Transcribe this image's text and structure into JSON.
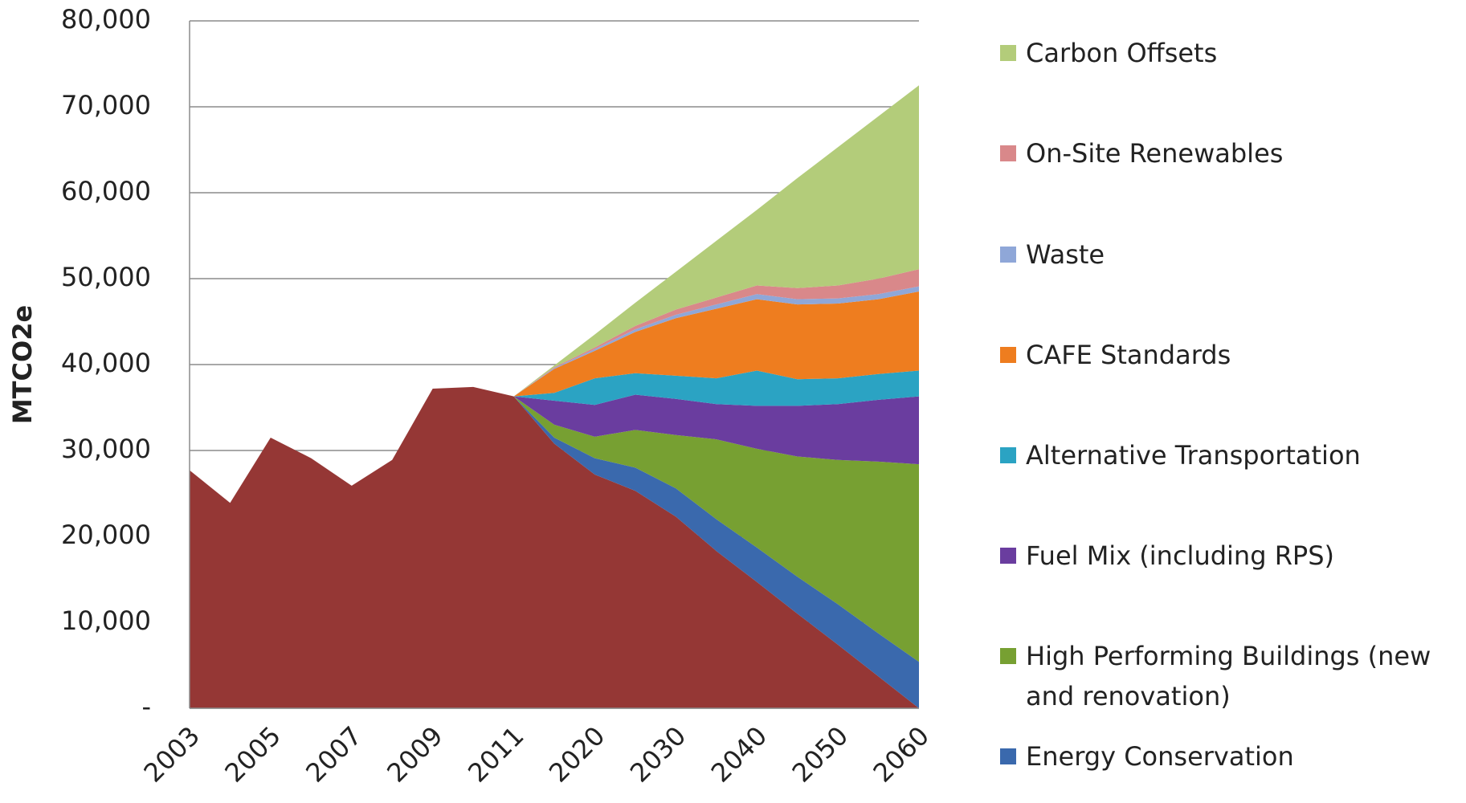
{
  "chart_data": {
    "type": "stacked-area",
    "y_label": "MTCO2e",
    "categories": [
      "2003",
      null,
      "2005",
      null,
      "2007",
      null,
      "2009",
      null,
      "2011",
      null,
      "2020",
      null,
      "2030",
      null,
      "2040",
      null,
      "2050",
      null,
      "2060"
    ],
    "ylim": [
      0,
      80000
    ],
    "yticks": [
      {
        "value": 0,
        "label": "-"
      },
      {
        "value": 10000,
        "label": "10,000"
      },
      {
        "value": 20000,
        "label": "20,000"
      },
      {
        "value": 30000,
        "label": "30,000"
      },
      {
        "value": 40000,
        "label": "40,000"
      },
      {
        "value": 50000,
        "label": "50,000"
      },
      {
        "value": 60000,
        "label": "60,000"
      },
      {
        "value": 70000,
        "label": "70,000"
      },
      {
        "value": 80000,
        "label": "80,000"
      }
    ],
    "grid": true,
    "legend": "right",
    "series": [
      {
        "color": "#953735",
        "values": [
          27700,
          23900,
          31500,
          29100,
          25900,
          28900,
          37200,
          37400,
          36300,
          30800,
          27200,
          25300,
          22300,
          18300,
          14700,
          11000,
          7400,
          3700,
          0
        ]
      },
      {
        "name": "Energy Conservation",
        "color": "#3a69ad",
        "values": [
          0,
          0,
          0,
          0,
          0,
          0,
          0,
          0,
          0,
          700,
          1900,
          2700,
          3300,
          3700,
          4000,
          4300,
          4700,
          5000,
          5400
        ]
      },
      {
        "name": "High Performing Buildings (new and renovation)",
        "color": "#77a032",
        "values": [
          0,
          0,
          0,
          0,
          0,
          0,
          0,
          0,
          0,
          1500,
          2500,
          4400,
          6200,
          9300,
          11500,
          14000,
          16800,
          20000,
          23000
        ]
      },
      {
        "name": "Fuel Mix (including RPS)",
        "color": "#6a3d9f",
        "values": [
          0,
          0,
          0,
          0,
          0,
          0,
          0,
          0,
          0,
          2800,
          3700,
          4100,
          4200,
          4100,
          5000,
          5900,
          6500,
          7200,
          7900
        ]
      },
      {
        "name": "Alternative Transportation",
        "color": "#2ba3c3",
        "values": [
          0,
          0,
          0,
          0,
          0,
          0,
          0,
          0,
          0,
          900,
          3100,
          2500,
          2700,
          3000,
          4100,
          3100,
          3000,
          3000,
          3000
        ]
      },
      {
        "name": "CAFE Standards",
        "color": "#ee7d1f",
        "values": [
          0,
          0,
          0,
          0,
          0,
          0,
          0,
          0,
          0,
          2800,
          3200,
          4800,
          6700,
          8100,
          8300,
          8700,
          8700,
          8700,
          9200
        ]
      },
      {
        "name": "Waste",
        "color": "#8fa7d8",
        "values": [
          0,
          0,
          0,
          0,
          0,
          0,
          0,
          0,
          0,
          100,
          200,
          300,
          400,
          500,
          600,
          600,
          600,
          600,
          600
        ]
      },
      {
        "name": "On-Site Renewables",
        "color": "#d9888a",
        "values": [
          0,
          0,
          0,
          0,
          0,
          0,
          0,
          0,
          0,
          100,
          200,
          400,
          600,
          800,
          1000,
          1300,
          1500,
          1800,
          2000
        ]
      },
      {
        "name": "Carbon Offsets",
        "color": "#b3cc7a",
        "values": [
          0,
          0,
          0,
          0,
          0,
          0,
          0,
          0,
          0,
          200,
          1500,
          2700,
          4400,
          6600,
          8800,
          12800,
          16100,
          18900,
          21400
        ]
      }
    ]
  }
}
